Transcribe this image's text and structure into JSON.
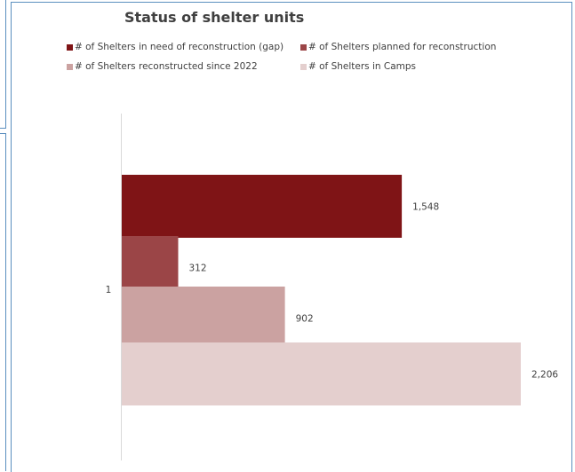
{
  "chart_data": {
    "type": "bar",
    "orientation": "horizontal",
    "title": "Status of shelter units",
    "categories": [
      "1"
    ],
    "series": [
      {
        "name": "# of Shelters in need of reconstruction (gap)",
        "values": [
          1548
        ],
        "value_labels": [
          "1,548"
        ],
        "color": "#7f1416"
      },
      {
        "name": "# of Shelters planned for reconstruction",
        "values": [
          312
        ],
        "value_labels": [
          "312"
        ],
        "color": "#9b4547"
      },
      {
        "name": "# of Shelters reconstructed since 2022",
        "values": [
          902
        ],
        "value_labels": [
          "902"
        ],
        "color": "#cba2a1"
      },
      {
        "name": "# of Shelters in Camps",
        "values": [
          2206
        ],
        "value_labels": [
          "2,206"
        ],
        "color": "#e4cfce"
      }
    ],
    "xlim": [
      0,
      2206
    ],
    "grid": false,
    "legend_position": "top",
    "xlabel": "",
    "ylabel": ""
  }
}
